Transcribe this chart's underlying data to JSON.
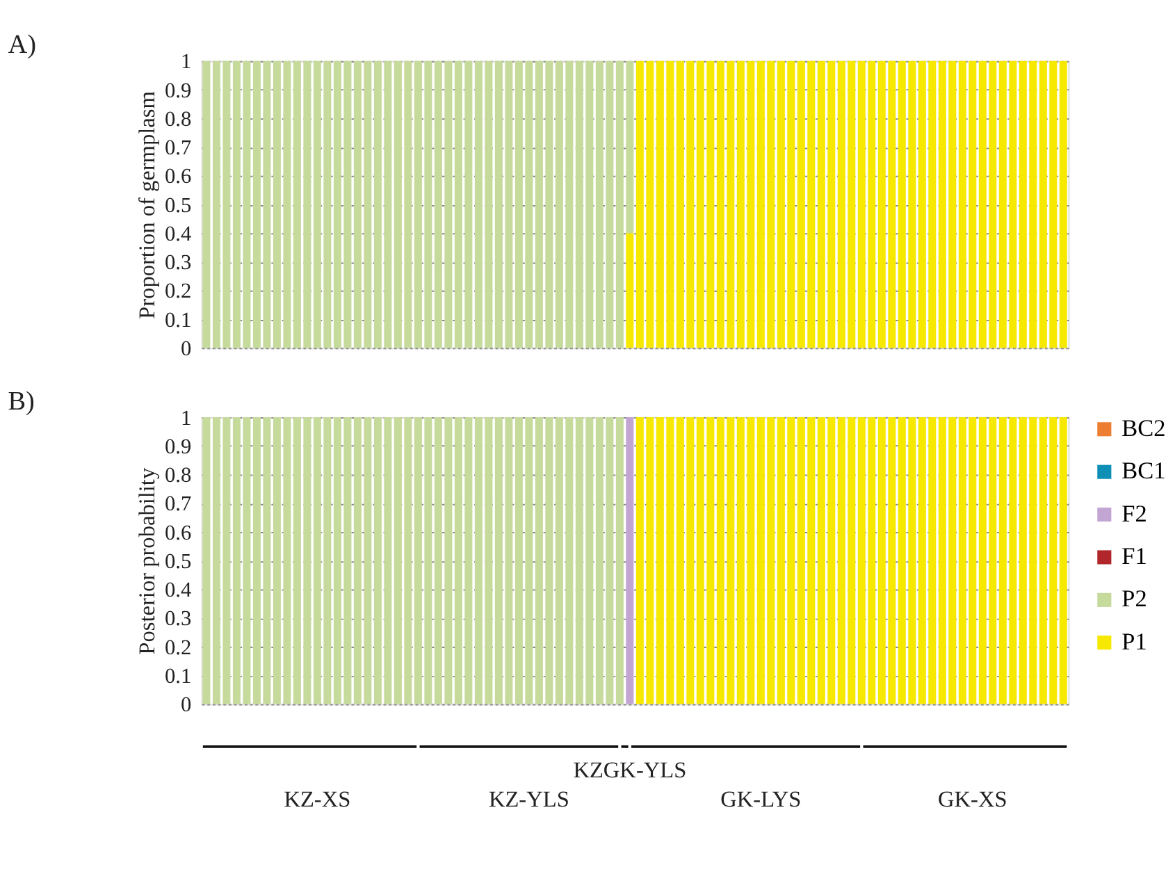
{
  "chart_data": [
    {
      "type": "bar",
      "title": "A)",
      "ylabel": "Proportion of germplasm",
      "stacked": true,
      "grid": "y",
      "tick_labels": "y",
      "categories": [
        null,
        null,
        null,
        null,
        null,
        null,
        null,
        null,
        null,
        null,
        null,
        null,
        null,
        null,
        null,
        null,
        null,
        null,
        null,
        null,
        null,
        null,
        null,
        null,
        null,
        null,
        null,
        null,
        null,
        null,
        null,
        null,
        null,
        null,
        null,
        null,
        null,
        null,
        null,
        null,
        null,
        null,
        null,
        null,
        null,
        null,
        null,
        null,
        null,
        null,
        null,
        null,
        null,
        null,
        null,
        null,
        null,
        null,
        null,
        null,
        null,
        null,
        null,
        null,
        null,
        null,
        null,
        null,
        null,
        null,
        null,
        null,
        null,
        null,
        null,
        null,
        null,
        null,
        null,
        null,
        null,
        null,
        null,
        null,
        null,
        null
      ],
      "ylim": [
        0,
        1
      ],
      "yticks": [
        0,
        0.1,
        0.2,
        0.3,
        0.4,
        0.5,
        0.6,
        0.7,
        0.8,
        0.9,
        1
      ],
      "series": [
        {
          "color": "#f7e800",
          "values": [
            0,
            0,
            0,
            0,
            0,
            0,
            0,
            0,
            0,
            0,
            0,
            0,
            0,
            0,
            0,
            0,
            0,
            0,
            0,
            0,
            0,
            0,
            0,
            0,
            0,
            0,
            0,
            0,
            0,
            0,
            0,
            0,
            0,
            0,
            0,
            0,
            0,
            0,
            0,
            0,
            0,
            0,
            0.4,
            1,
            1,
            1,
            1,
            1,
            1,
            1,
            1,
            1,
            1,
            1,
            1,
            1,
            1,
            1,
            1,
            1,
            1,
            1,
            1,
            1,
            1,
            1,
            1,
            1,
            1,
            1,
            1,
            1,
            1,
            1,
            1,
            1,
            1,
            1,
            1,
            1,
            1,
            1,
            1,
            1,
            1,
            1
          ]
        },
        {
          "color": "#c6da9c",
          "values": [
            1,
            1,
            1,
            1,
            1,
            1,
            1,
            1,
            1,
            1,
            1,
            1,
            1,
            1,
            1,
            1,
            1,
            1,
            1,
            1,
            1,
            1,
            1,
            1,
            1,
            1,
            1,
            1,
            1,
            1,
            1,
            1,
            1,
            1,
            1,
            1,
            1,
            1,
            1,
            1,
            1,
            1,
            0.6,
            0,
            0,
            0,
            0,
            0,
            0,
            0,
            0,
            0,
            0,
            0,
            0,
            0,
            0,
            0,
            0,
            0,
            0,
            0,
            0,
            0,
            0,
            0,
            0,
            0,
            0,
            0,
            0,
            0,
            0,
            0,
            0,
            0,
            0,
            0,
            0,
            0,
            0,
            0,
            0,
            0,
            0,
            0
          ]
        }
      ]
    },
    {
      "type": "bar",
      "title": "B)",
      "ylabel": "Posterior probability",
      "stacked": true,
      "grid": "y",
      "legend": "right",
      "categories": [
        null,
        null,
        null,
        null,
        null,
        null,
        null,
        null,
        null,
        null,
        null,
        "KZ-XS",
        null,
        null,
        null,
        null,
        null,
        null,
        null,
        null,
        null,
        null,
        null,
        null,
        null,
        null,
        null,
        null,
        null,
        null,
        null,
        null,
        "KZ-YLS",
        null,
        null,
        null,
        null,
        null,
        null,
        null,
        null,
        null,
        "KZGK-YLS",
        null,
        null,
        null,
        null,
        null,
        null,
        null,
        null,
        null,
        null,
        null,
        null,
        "GK-LYS",
        null,
        null,
        null,
        null,
        null,
        null,
        null,
        null,
        null,
        null,
        null,
        null,
        null,
        null,
        null,
        null,
        null,
        null,
        null,
        null,
        "GK-XS",
        null,
        null,
        null,
        null,
        null,
        null,
        null,
        null,
        null
      ],
      "ylim": [
        0,
        1
      ],
      "yticks": [
        0,
        0.1,
        0.2,
        0.3,
        0.4,
        0.5,
        0.6,
        0.7,
        0.8,
        0.9,
        1
      ],
      "series": [
        {
          "name": "P1",
          "color": "#f7e800",
          "values": [
            0,
            0,
            0,
            0,
            0,
            0,
            0,
            0,
            0,
            0,
            0,
            0,
            0,
            0,
            0,
            0,
            0,
            0,
            0,
            0,
            0,
            0,
            0,
            0,
            0,
            0,
            0,
            0,
            0,
            0,
            0,
            0,
            0,
            0,
            0,
            0,
            0,
            0,
            0,
            0,
            0,
            0,
            0,
            1,
            1,
            1,
            1,
            1,
            1,
            1,
            1,
            1,
            1,
            1,
            1,
            1,
            1,
            1,
            1,
            1,
            1,
            1,
            1,
            1,
            1,
            1,
            1,
            1,
            1,
            1,
            1,
            1,
            1,
            1,
            1,
            1,
            1,
            1,
            1,
            1,
            1,
            1,
            1,
            1,
            1,
            1
          ]
        },
        {
          "name": "P2",
          "color": "#c6da9c",
          "values": [
            1,
            1,
            1,
            1,
            1,
            1,
            1,
            1,
            1,
            1,
            1,
            1,
            1,
            1,
            1,
            1,
            1,
            1,
            1,
            1,
            1,
            1,
            1,
            1,
            1,
            1,
            1,
            1,
            1,
            1,
            1,
            1,
            1,
            1,
            1,
            1,
            1,
            1,
            1,
            1,
            1,
            1,
            0,
            0,
            0,
            0,
            0,
            0,
            0,
            0,
            0,
            0,
            0,
            0,
            0,
            0,
            0,
            0,
            0,
            0,
            0,
            0,
            0,
            0,
            0,
            0,
            0,
            0,
            0,
            0,
            0,
            0,
            0,
            0,
            0,
            0,
            0,
            0,
            0,
            0,
            0,
            0,
            0,
            0,
            0,
            0
          ]
        },
        {
          "name": "F1",
          "color": "#b0262a",
          "values": [
            0,
            0,
            0,
            0,
            0,
            0,
            0,
            0,
            0,
            0,
            0,
            0,
            0,
            0,
            0,
            0,
            0,
            0,
            0,
            0,
            0,
            0,
            0,
            0,
            0,
            0,
            0,
            0,
            0,
            0,
            0,
            0,
            0,
            0,
            0,
            0,
            0,
            0,
            0,
            0,
            0,
            0,
            0,
            0,
            0,
            0,
            0,
            0,
            0,
            0,
            0,
            0,
            0,
            0,
            0,
            0,
            0,
            0,
            0,
            0,
            0,
            0,
            0,
            0,
            0,
            0,
            0,
            0,
            0,
            0,
            0,
            0,
            0,
            0,
            0,
            0,
            0,
            0,
            0,
            0,
            0,
            0,
            0,
            0,
            0,
            0
          ]
        },
        {
          "name": "F2",
          "color": "#c3a5d3",
          "values": [
            0,
            0,
            0,
            0,
            0,
            0,
            0,
            0,
            0,
            0,
            0,
            0,
            0,
            0,
            0,
            0,
            0,
            0,
            0,
            0,
            0,
            0,
            0,
            0,
            0,
            0,
            0,
            0,
            0,
            0,
            0,
            0,
            0,
            0,
            0,
            0,
            0,
            0,
            0,
            0,
            0,
            0,
            1,
            0,
            0,
            0,
            0,
            0,
            0,
            0,
            0,
            0,
            0,
            0,
            0,
            0,
            0,
            0,
            0,
            0,
            0,
            0,
            0,
            0,
            0,
            0,
            0,
            0,
            0,
            0,
            0,
            0,
            0,
            0,
            0,
            0,
            0,
            0,
            0,
            0,
            0,
            0,
            0,
            0,
            0,
            0
          ]
        },
        {
          "name": "BC1",
          "color": "#0e8fb5",
          "values": [
            0,
            0,
            0,
            0,
            0,
            0,
            0,
            0,
            0,
            0,
            0,
            0,
            0,
            0,
            0,
            0,
            0,
            0,
            0,
            0,
            0,
            0,
            0,
            0,
            0,
            0,
            0,
            0,
            0,
            0,
            0,
            0,
            0,
            0,
            0,
            0,
            0,
            0,
            0,
            0,
            0,
            0,
            0,
            0,
            0,
            0,
            0,
            0,
            0,
            0,
            0,
            0,
            0,
            0,
            0,
            0,
            0,
            0,
            0,
            0,
            0,
            0,
            0,
            0,
            0,
            0,
            0,
            0,
            0,
            0,
            0,
            0,
            0,
            0,
            0,
            0,
            0,
            0,
            0,
            0,
            0,
            0,
            0,
            0,
            0,
            0
          ]
        },
        {
          "name": "BC2",
          "color": "#ed7d31",
          "values": [
            0,
            0,
            0,
            0,
            0,
            0,
            0,
            0,
            0,
            0,
            0,
            0,
            0,
            0,
            0,
            0,
            0,
            0,
            0,
            0,
            0,
            0,
            0,
            0,
            0,
            0,
            0,
            0,
            0,
            0,
            0,
            0,
            0,
            0,
            0,
            0,
            0,
            0,
            0,
            0,
            0,
            0,
            0,
            0,
            0,
            0,
            0,
            0,
            0,
            0,
            0,
            0,
            0,
            0,
            0,
            0,
            0,
            0,
            0,
            0,
            0,
            0,
            0,
            0,
            0,
            0,
            0,
            0,
            0,
            0,
            0,
            0,
            0,
            0,
            0,
            0,
            0,
            0,
            0,
            0,
            0,
            0,
            0,
            0,
            0,
            0
          ]
        }
      ]
    }
  ]
}
